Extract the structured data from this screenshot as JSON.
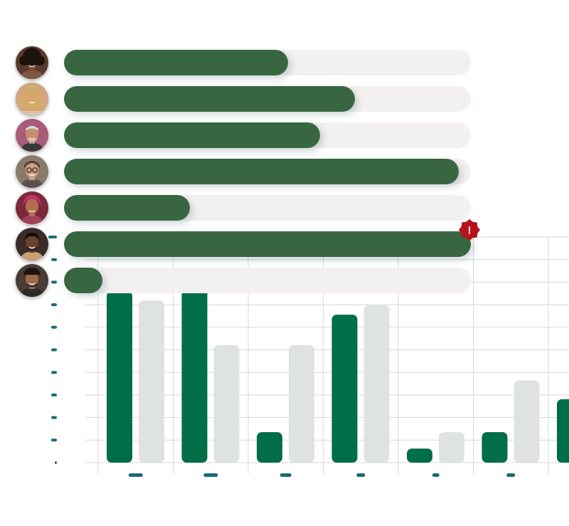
{
  "progress_rows": [
    {
      "avatar": "woman-curly-hair-avatar",
      "value": 0.55
    },
    {
      "avatar": "woman-blonde-hair-avatar",
      "value": 0.715
    },
    {
      "avatar": "bald-bearded-man-avatar",
      "value": 0.63
    },
    {
      "avatar": "man-with-glasses-avatar",
      "value": 0.97
    },
    {
      "avatar": "woman-with-headscarf-avatar",
      "value": 0.31
    },
    {
      "avatar": "smiling-man-avatar",
      "value": 1.0,
      "alert": true,
      "alert_icon": "exclamation-badge-icon",
      "alert_text": "!"
    },
    {
      "avatar": "man-with-cap-avatar",
      "value": 0.095
    }
  ],
  "colors": {
    "progress_fill": "#386641",
    "progress_track": "#f3f1ef",
    "bar_primary": "#006e47",
    "bar_secondary": "#dfe3df",
    "tick_marker": "#1b6a7a",
    "grid": "#d8d8d8",
    "alert": "#b5121b"
  },
  "chart_data": {
    "type": "bar",
    "categories": [
      "",
      "",
      "",
      "",
      "",
      "",
      ""
    ],
    "series": [
      {
        "values": [
          73,
          76,
          13,
          63,
          6,
          13,
          27
        ]
      },
      {
        "values": [
          69,
          50,
          50,
          67,
          13,
          35,
          null
        ]
      }
    ],
    "ylim": [
      0,
      100
    ],
    "grid": true,
    "tick_labels_hidden": true
  }
}
